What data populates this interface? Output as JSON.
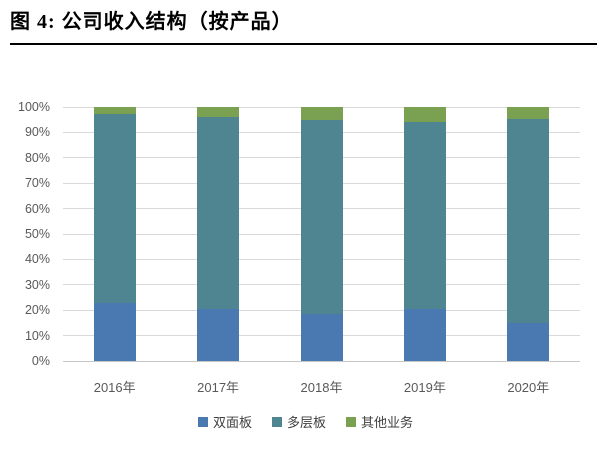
{
  "figure": {
    "title": "图 4: 公司收入结构（按产品）"
  },
  "chart_data": {
    "type": "bar",
    "stacked": true,
    "stack_unit": "percent",
    "title": "公司收入结构（按产品）",
    "categories": [
      "2016年",
      "2017年",
      "2018年",
      "2019年",
      "2020年"
    ],
    "series": [
      {
        "name": "双面板",
        "color": "#4A79B1",
        "values": [
          22.7,
          20.3,
          18.7,
          20.5,
          15.0
        ]
      },
      {
        "name": "多层板",
        "color": "#4E8590",
        "values": [
          74.4,
          75.9,
          76.1,
          73.5,
          80.2
        ]
      },
      {
        "name": "其他业务",
        "color": "#7AA052",
        "values": [
          2.9,
          3.8,
          5.2,
          6.0,
          4.8
        ]
      }
    ],
    "xlabel": "",
    "ylabel": "",
    "ylim": [
      0,
      100
    ],
    "ytick_step": 10,
    "yticks": [
      "0%",
      "10%",
      "20%",
      "30%",
      "40%",
      "50%",
      "60%",
      "70%",
      "80%",
      "90%",
      "100%"
    ],
    "grid": true,
    "gridline_color": "#d9d9d9",
    "axis_label_color": "#595959",
    "legend_position": "bottom"
  }
}
